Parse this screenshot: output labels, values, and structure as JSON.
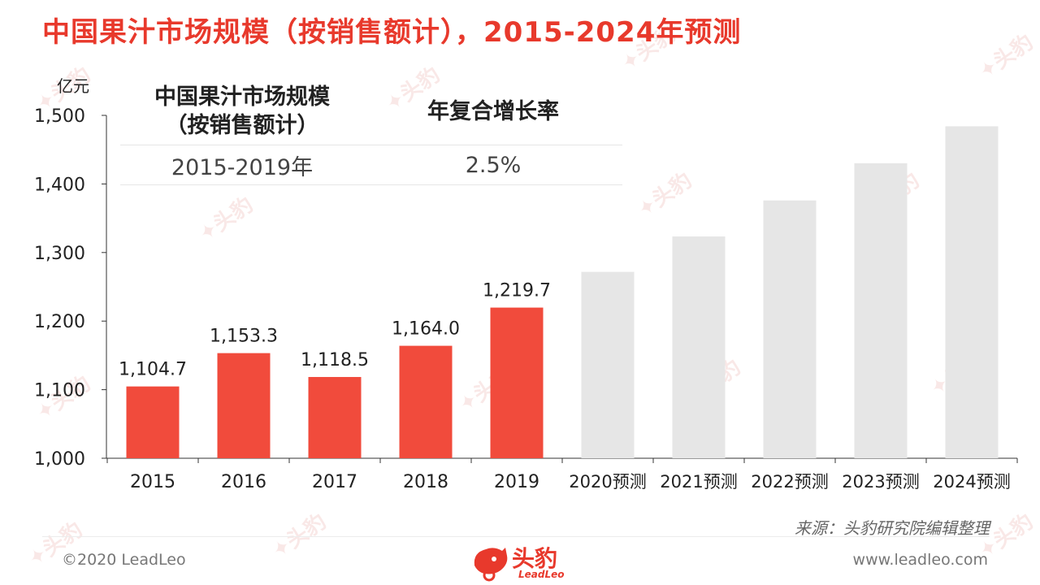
{
  "title": "中国果汁市场规模（按销售额计），2015-2024年预测",
  "unit": "亿元",
  "cagr_table": {
    "header_metric": "中国果汁市场规模\n（按销售额计）",
    "header_rate": "年复合增长率",
    "rows": [
      {
        "period": "2015-2019年",
        "rate": "2.5%"
      }
    ]
  },
  "chart_data": {
    "type": "bar",
    "categories": [
      "2015",
      "2016",
      "2017",
      "2018",
      "2019",
      "2020预测",
      "2021预测",
      "2022预测",
      "2023预测",
      "2024预测"
    ],
    "values": [
      1104.7,
      1153.3,
      1118.5,
      1164.0,
      1219.7,
      1271.8,
      1323.4,
      1375.9,
      1430.2,
      1484.1
    ],
    "data_labels": [
      "1,104.7",
      "1,153.3",
      "1,118.5",
      "1,164.0",
      "1,219.7",
      "",
      "",
      "",
      "",
      ""
    ],
    "forecast": [
      false,
      false,
      false,
      false,
      false,
      true,
      true,
      true,
      true,
      true
    ],
    "ylim": [
      1000,
      1500
    ],
    "yticks": [
      1000,
      1100,
      1200,
      1300,
      1400,
      1500
    ],
    "ytick_labels": [
      "1,000",
      "1,100",
      "1,200",
      "1,300",
      "1,400",
      "1,500"
    ],
    "ylabel": "亿元",
    "colors": {
      "actual": "#f14b3c",
      "forecast": "#e6e6e6",
      "axis": "#333333"
    }
  },
  "footer": {
    "source": "来源：头豹研究院编辑整理",
    "copyright": "©2020 LeadLeo",
    "website": "www.leadleo.com",
    "logo_text": "头豹",
    "logo_sub": "LeadLeo"
  }
}
